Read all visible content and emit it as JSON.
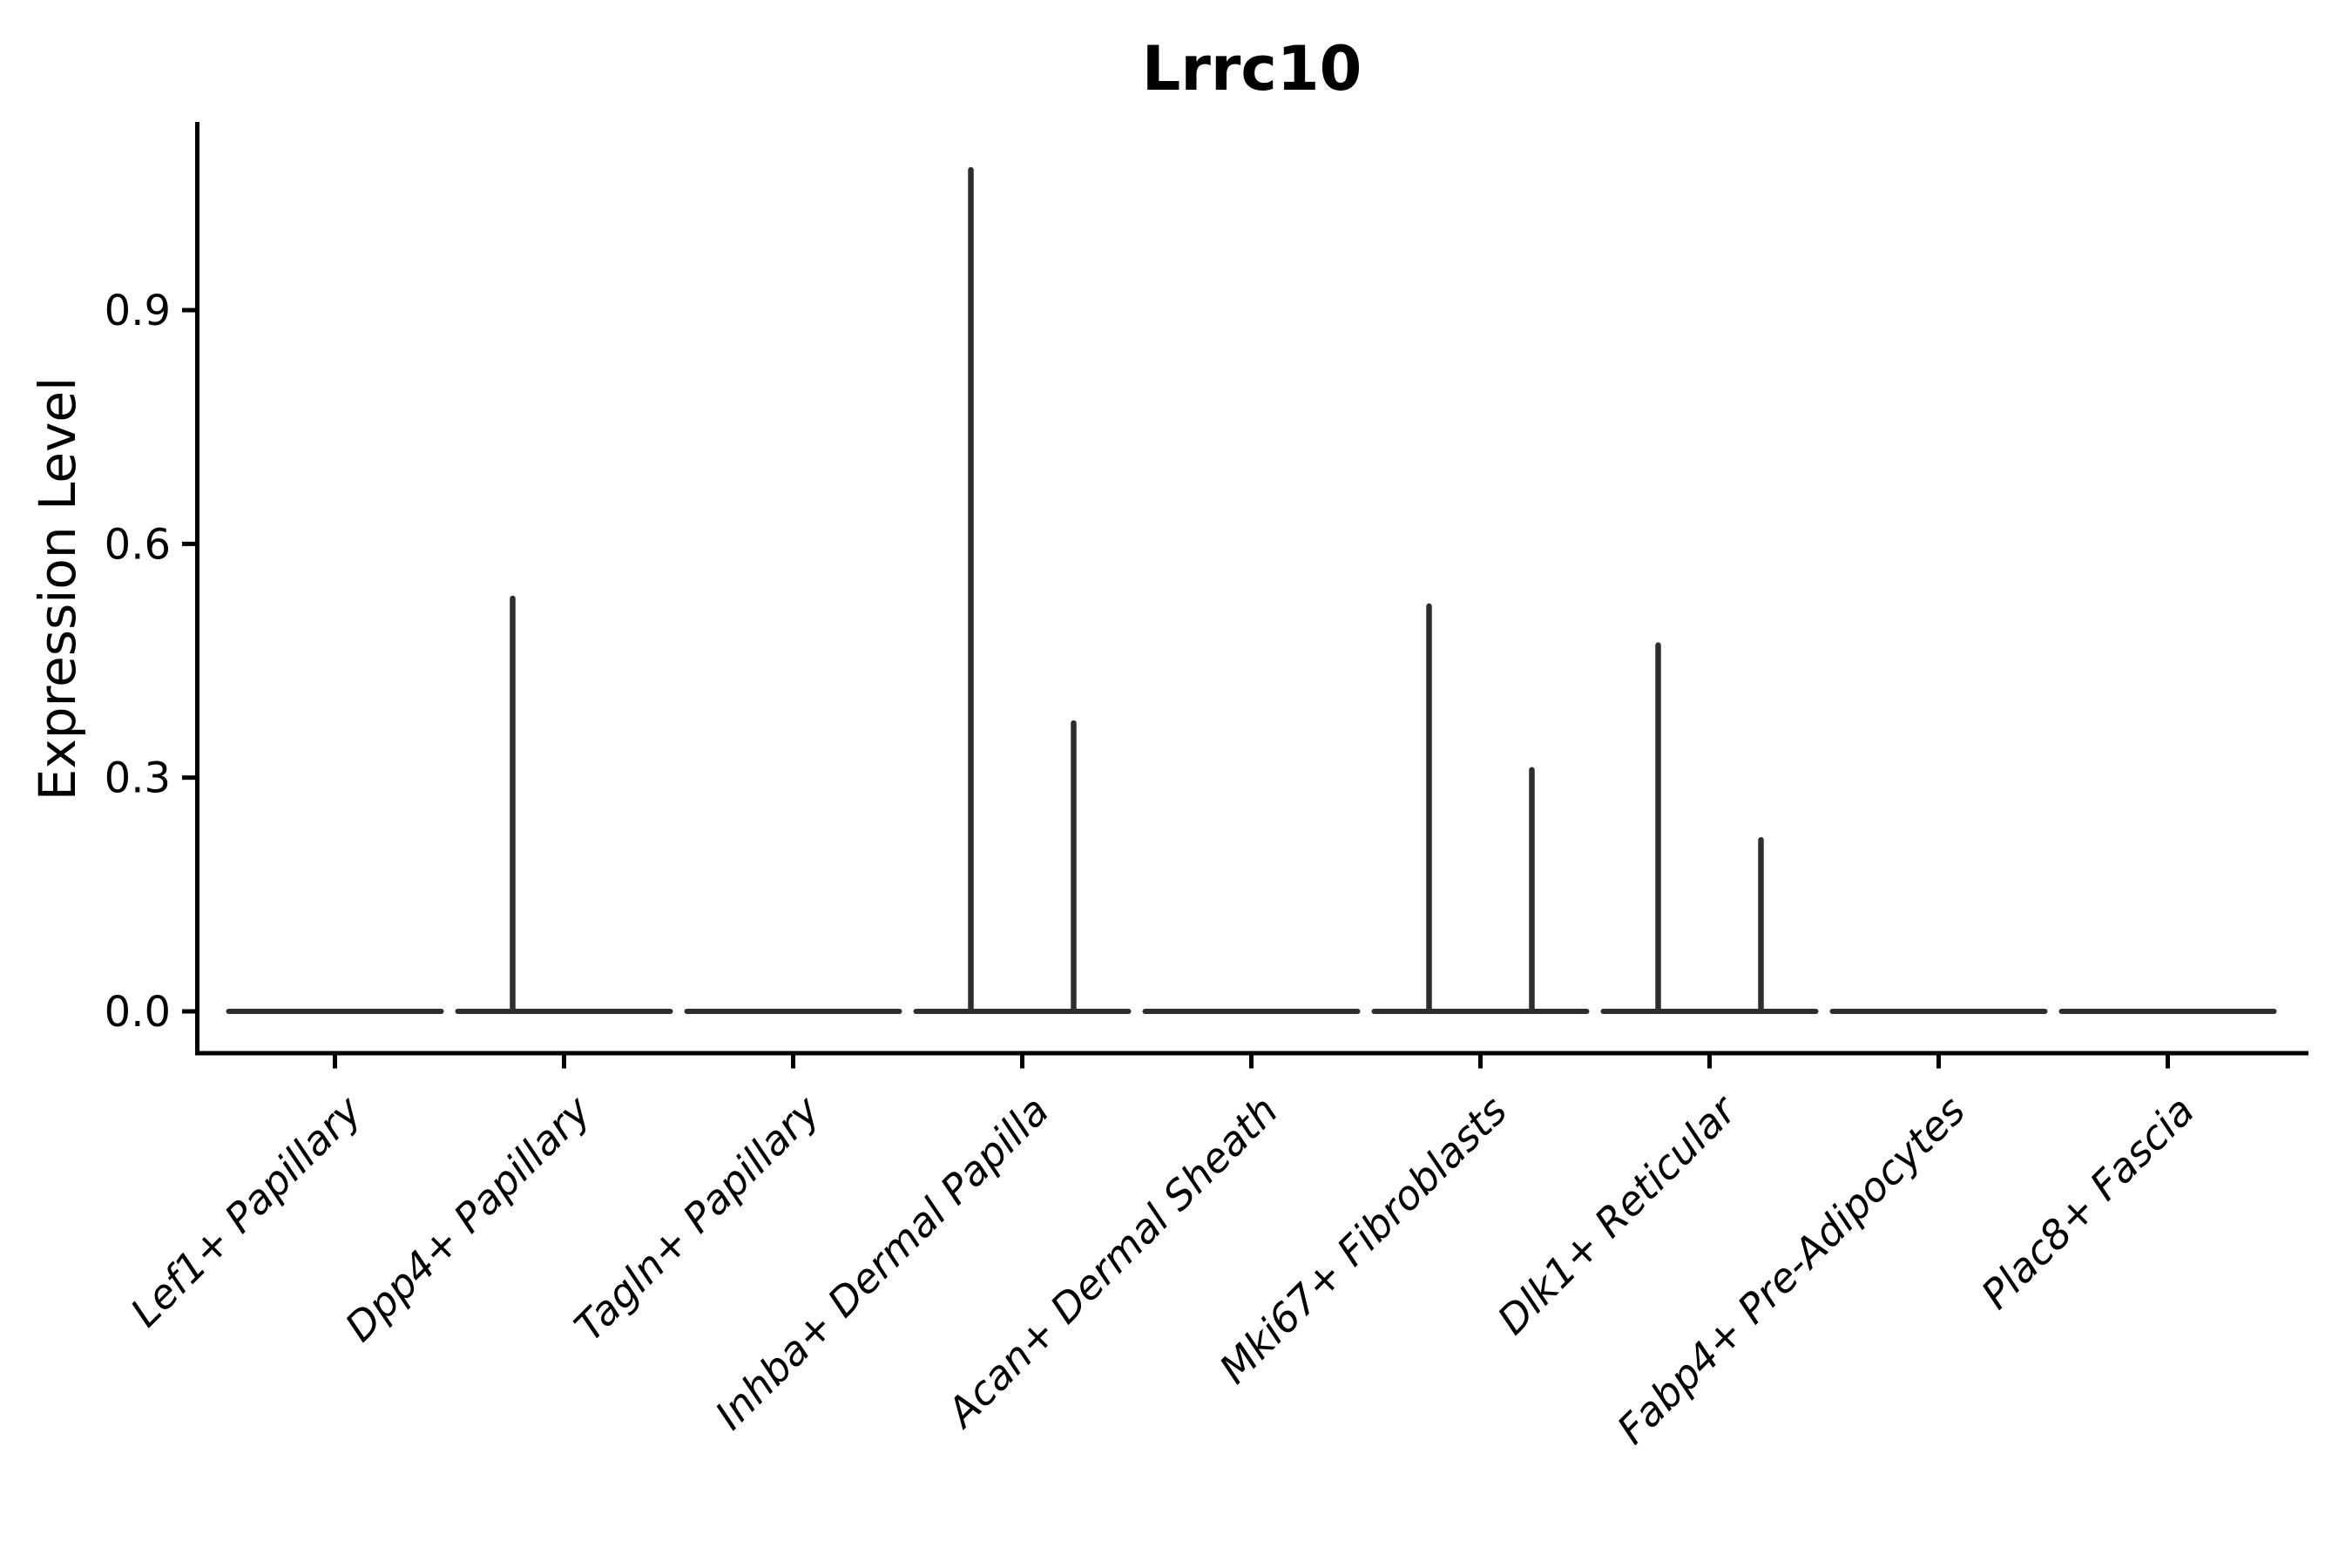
{
  "title": "Lrrc10",
  "axes": {
    "ylabel": "Expression Level",
    "xlabel": ""
  },
  "chart_data": {
    "type": "violin",
    "title": "Lrrc10",
    "ylabel": "Expression Level",
    "xlabel": "",
    "yticks": [
      0.0,
      0.3,
      0.6,
      0.9
    ],
    "ylim": [
      0,
      1.12
    ],
    "grid": false,
    "legend": null,
    "categories": [
      "Lef1+ Papillary",
      "Dpp4+ Papillary",
      "Tagln+ Papillary",
      "Inhba+ Dermal Papilla",
      "Acan+ Dermal Sheath",
      "Mki67+ Fibroblasts",
      "Dlk1+ Reticular",
      "Fabp4+ Pre-Adipocytes",
      "Plac8+ Fascia"
    ],
    "description": "Expression of Lrrc10 across fibroblast populations. Nearly all cells have zero expression, so each violin collapses to a flat horizontal line at 0; each category is drawn as two side-by-side sub-violins whose rare expressing cells appear as thin vertical density needles reaching the listed maximum expression value.",
    "series": [
      {
        "name": "left sub-violin needle max",
        "values": [
          0,
          0.53,
          0,
          1.08,
          0,
          0.52,
          0.47,
          0,
          0
        ]
      },
      {
        "name": "right sub-violin needle max",
        "values": [
          0,
          0,
          0,
          0.37,
          0,
          0.31,
          0.22,
          0,
          0
        ]
      }
    ],
    "colors": {
      "violin": "#2e2e2e",
      "axis": "#000000",
      "background": "#ffffff"
    }
  }
}
